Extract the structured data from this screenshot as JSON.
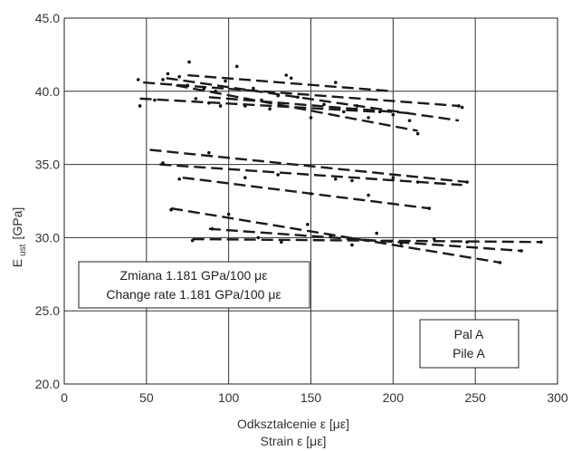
{
  "chart_data": {
    "type": "scatter",
    "title": "",
    "xlabel": "Odkształcenie ε [με]",
    "xlabel2": "Strain ε [με]",
    "ylabel": "E",
    "ylabel_sub": "ust",
    "ylabel_unit": "[GPa]",
    "xlim": [
      0,
      300
    ],
    "ylim": [
      20,
      45
    ],
    "x_ticks": [
      0,
      50,
      100,
      150,
      200,
      250,
      300
    ],
    "y_ticks": [
      20.0,
      25.0,
      30.0,
      35.0,
      40.0,
      45.0
    ],
    "x_tick_labels": [
      "0",
      "50",
      "100",
      "150",
      "200",
      "250",
      "300"
    ],
    "y_tick_labels": [
      "20.0",
      "25.0",
      "30.0",
      "35.0",
      "40.0",
      "45.0"
    ],
    "grid": true,
    "annotations": {
      "rate_line1": "Zmiana 1.181 GPa/100 με",
      "rate_line2": "Change rate 1.181 GPa/100 με",
      "pile_line1": "Pal A",
      "pile_line2": "Pile A"
    },
    "trend_lines": [
      {
        "x": [
          48,
          240
        ],
        "y": [
          40.6,
          39.0
        ]
      },
      {
        "x": [
          62,
          240
        ],
        "y": [
          40.9,
          38.0
        ]
      },
      {
        "x": [
          75,
          200
        ],
        "y": [
          41.1,
          40.0
        ]
      },
      {
        "x": [
          68,
          215
        ],
        "y": [
          40.4,
          37.3
        ]
      },
      {
        "x": [
          46,
          190
        ],
        "y": [
          39.5,
          38.6
        ]
      },
      {
        "x": [
          88,
          210
        ],
        "y": [
          39.6,
          38.5
        ]
      },
      {
        "x": [
          52,
          245
        ],
        "y": [
          36.0,
          33.8
        ]
      },
      {
        "x": [
          58,
          242
        ],
        "y": [
          35.0,
          33.6
        ]
      },
      {
        "x": [
          72,
          222
        ],
        "y": [
          34.1,
          32.0
        ]
      },
      {
        "x": [
          65,
          265
        ],
        "y": [
          32.0,
          28.3
        ]
      },
      {
        "x": [
          88,
          278
        ],
        "y": [
          30.6,
          29.1
        ]
      },
      {
        "x": [
          78,
          290
        ],
        "y": [
          29.9,
          29.7
        ]
      }
    ],
    "points": [
      {
        "x": 45,
        "y": 40.8
      },
      {
        "x": 46,
        "y": 39.0
      },
      {
        "x": 55,
        "y": 39.4
      },
      {
        "x": 60,
        "y": 40.8
      },
      {
        "x": 63,
        "y": 41.2
      },
      {
        "x": 70,
        "y": 41.0
      },
      {
        "x": 75,
        "y": 40.4
      },
      {
        "x": 76,
        "y": 42.0
      },
      {
        "x": 80,
        "y": 39.5
      },
      {
        "x": 85,
        "y": 40.2
      },
      {
        "x": 88,
        "y": 39.2
      },
      {
        "x": 92,
        "y": 40.0
      },
      {
        "x": 95,
        "y": 39.0
      },
      {
        "x": 98,
        "y": 40.7
      },
      {
        "x": 105,
        "y": 41.7
      },
      {
        "x": 110,
        "y": 39.0
      },
      {
        "x": 115,
        "y": 40.2
      },
      {
        "x": 120,
        "y": 39.4
      },
      {
        "x": 125,
        "y": 38.8
      },
      {
        "x": 130,
        "y": 39.7
      },
      {
        "x": 135,
        "y": 41.1
      },
      {
        "x": 138,
        "y": 40.9
      },
      {
        "x": 142,
        "y": 39.6
      },
      {
        "x": 150,
        "y": 38.2
      },
      {
        "x": 158,
        "y": 39.1
      },
      {
        "x": 165,
        "y": 40.6
      },
      {
        "x": 170,
        "y": 38.6
      },
      {
        "x": 178,
        "y": 39.0
      },
      {
        "x": 185,
        "y": 38.2
      },
      {
        "x": 192,
        "y": 38.6
      },
      {
        "x": 200,
        "y": 38.4
      },
      {
        "x": 210,
        "y": 38.0
      },
      {
        "x": 215,
        "y": 37.1
      },
      {
        "x": 240,
        "y": 39.0
      },
      {
        "x": 242,
        "y": 38.9
      },
      {
        "x": 60,
        "y": 35.1
      },
      {
        "x": 70,
        "y": 34.0
      },
      {
        "x": 88,
        "y": 35.8
      },
      {
        "x": 110,
        "y": 34.1
      },
      {
        "x": 130,
        "y": 34.3
      },
      {
        "x": 150,
        "y": 33.0
      },
      {
        "x": 165,
        "y": 34.0
      },
      {
        "x": 175,
        "y": 33.9
      },
      {
        "x": 185,
        "y": 32.9
      },
      {
        "x": 200,
        "y": 34.1
      },
      {
        "x": 215,
        "y": 33.8
      },
      {
        "x": 222,
        "y": 32.0
      },
      {
        "x": 245,
        "y": 33.8
      },
      {
        "x": 65,
        "y": 31.9
      },
      {
        "x": 78,
        "y": 29.8
      },
      {
        "x": 90,
        "y": 30.6
      },
      {
        "x": 100,
        "y": 31.6
      },
      {
        "x": 118,
        "y": 30.0
      },
      {
        "x": 132,
        "y": 29.7
      },
      {
        "x": 148,
        "y": 30.9
      },
      {
        "x": 162,
        "y": 30.1
      },
      {
        "x": 175,
        "y": 29.5
      },
      {
        "x": 190,
        "y": 30.3
      },
      {
        "x": 205,
        "y": 29.6
      },
      {
        "x": 225,
        "y": 29.9
      },
      {
        "x": 245,
        "y": 29.7
      },
      {
        "x": 265,
        "y": 28.3
      },
      {
        "x": 278,
        "y": 29.1
      },
      {
        "x": 290,
        "y": 29.7
      }
    ]
  }
}
